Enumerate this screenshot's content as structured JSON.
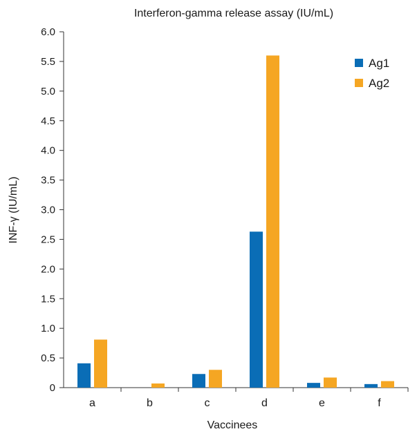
{
  "chart_data": {
    "type": "bar",
    "title": "Interferon-gamma release assay (IU/mL)",
    "xlabel": "Vaccinees",
    "ylabel": "INF-γ (IU/mL)",
    "categories": [
      "a",
      "b",
      "c",
      "d",
      "e",
      "f"
    ],
    "ylim": [
      0,
      6.0
    ],
    "yticks": [
      "0",
      "0.5",
      "1.0",
      "1.5",
      "2.0",
      "2.5",
      "3.0",
      "3.5",
      "4.0",
      "4.5",
      "5.0",
      "5.5",
      "6.0"
    ],
    "grid": false,
    "legend_position": "top-right",
    "series": [
      {
        "name": "Ag1",
        "color": "#0a6db6",
        "values": [
          0.41,
          0,
          0.23,
          2.63,
          0.08,
          0.06
        ]
      },
      {
        "name": "Ag2",
        "color": "#f5a623",
        "values": [
          0.81,
          0.07,
          0.3,
          5.6,
          0.17,
          0.11
        ]
      }
    ]
  }
}
